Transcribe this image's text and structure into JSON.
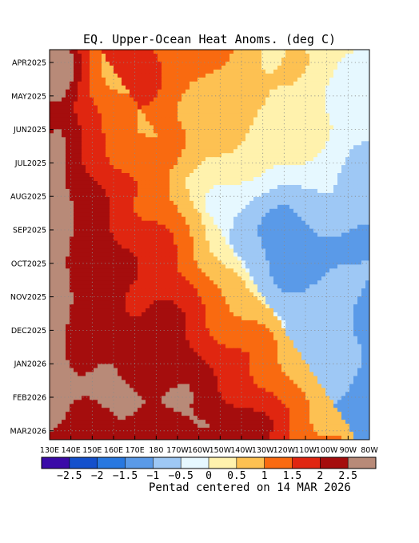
{
  "chart_data": {
    "type": "heatmap",
    "title": "EQ. Upper-Ocean Heat Anoms. (deg C)",
    "footnote": "Pentad centered on 14 MAR 2026",
    "xlabel": "",
    "ylabel": "",
    "x_ticks": [
      "130E",
      "140E",
      "150E",
      "160E",
      "170E",
      "180",
      "170W",
      "160W",
      "150W",
      "140W",
      "130W",
      "120W",
      "110W",
      "100W",
      "90W",
      "80W"
    ],
    "y_ticks": [
      "APR2025",
      "MAY2025",
      "JUN2025",
      "JUL2025",
      "AUG2025",
      "SEP2025",
      "OCT2025",
      "NOV2025",
      "DEC2025",
      "JAN2026",
      "FEB2026",
      "MAR2026"
    ],
    "grid": true,
    "colorbar": {
      "labels": [
        "-2.5",
        "-2",
        "-1.5",
        "-1",
        "-0.5",
        "0",
        "0.5",
        "1",
        "1.5",
        "2",
        "2.5"
      ],
      "colors": [
        "#3a0aa8",
        "#1450cc",
        "#2878e0",
        "#5a9ae8",
        "#9ec8f5",
        "#e6f8ff",
        "#fff2ad",
        "#fdc152",
        "#f96a10",
        "#e02610",
        "#a50d0d",
        "#b88a78"
      ]
    }
  }
}
